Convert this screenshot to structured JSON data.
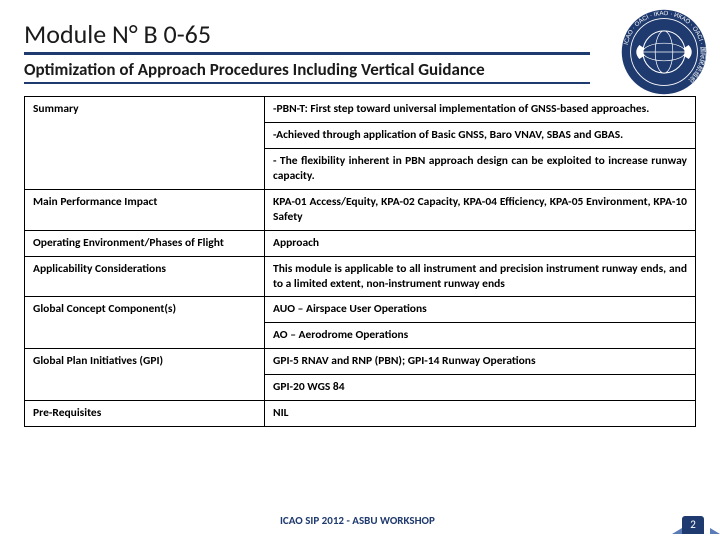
{
  "header": {
    "title": "Module N° B 0-65",
    "subtitle": "Optimization of Approach Procedures Including Vertical Guidance"
  },
  "logo": {
    "bg_color": "#1f3a6e",
    "ring_text": "ICAO · OACI · ІКАО · ИКАО",
    "icon": "globe-wings"
  },
  "rows": [
    {
      "label": "Summary",
      "values": [
        "-PBN-T: First step toward universal implementation of GNSS-based approaches.",
        "-Achieved through application of Basic GNSS, Baro VNAV, SBAS and GBAS.",
        "- The flexibility inherent in PBN approach design can be exploited to increase runway capacity."
      ]
    },
    {
      "label": "Main Performance Impact",
      "values": [
        "KPA-01 Access/Equity, KPA-02 Capacity, KPA-04 Efficiency, KPA-05 Environment, KPA-10 Safety"
      ]
    },
    {
      "label": "Operating Environment/Phases of Flight",
      "values": [
        "Approach"
      ]
    },
    {
      "label": "Applicability Considerations",
      "values": [
        "This module is applicable to all instrument and precision instrument runway ends, and to a limited extent, non-instrument runway ends"
      ]
    },
    {
      "label": "Global Concept Component(s)",
      "values": [
        "AUO – Airspace User Operations",
        "AO – Aerodrome Operations"
      ]
    },
    {
      "label": "Global Plan Initiatives (GPI)",
      "values": [
        "GPI-5 RNAV and RNP (PBN); GPI-14 Runway Operations",
        "GPI-20 WGS 84"
      ]
    },
    {
      "label": "Pre-Requisites",
      "values": [
        "NIL"
      ]
    }
  ],
  "footer": {
    "text": "ICAO SIP 2012 - ASBU WORKSHOP",
    "page": "2"
  },
  "colors": {
    "accent": "#1f3a6e",
    "text": "#1a1a1a"
  }
}
